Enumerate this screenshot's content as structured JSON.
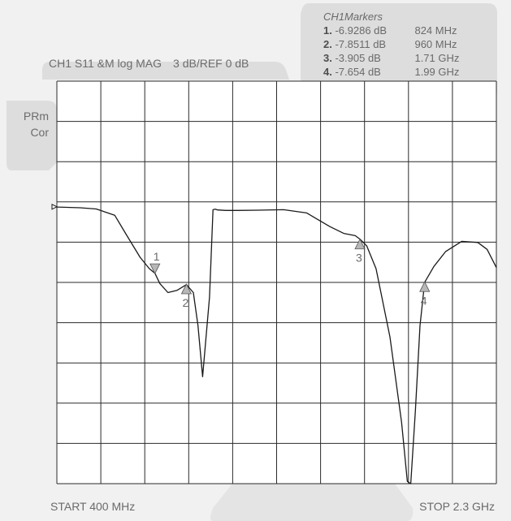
{
  "header": {
    "channel": "CH1 S11 &M log MAG",
    "scale": "3 dB/REF 0 dB"
  },
  "side_panel": {
    "line1": "PRm",
    "line2": "Cor"
  },
  "markers_panel": {
    "title": "CH1Markers",
    "markers": [
      {
        "num": "1.",
        "db": "-6.9286 dB",
        "freq": "824 MHz"
      },
      {
        "num": "2.",
        "db": "-7.8511 dB",
        "freq": "960 MHz"
      },
      {
        "num": "3.",
        "db": "-3.905 dB",
        "freq": "1.71 GHz"
      },
      {
        "num": "4.",
        "db": "-7.654 dB",
        "freq": "1.99 GHz"
      }
    ]
  },
  "footer": {
    "start": "START 400 MHz",
    "stop": "STOP 2.3 GHz"
  },
  "colors": {
    "background": "#f1f1f1",
    "panel": "#dddddd",
    "grid": "#2a2a2a",
    "trace": "#1a1a1a",
    "marker_fill": "#b7b7b7",
    "text": "#6a6a6a"
  },
  "chart_data": {
    "type": "line",
    "x_unit": "MHz",
    "y_unit": "dB",
    "xlim": [
      400,
      2300
    ],
    "ylim": [
      -30,
      0
    ],
    "grid": true,
    "reference_level": 0,
    "divisions_x": 10,
    "divisions_y": 10,
    "series": [
      {
        "x": [
          400,
          430,
          500,
          570,
          650,
          700,
          760,
          800,
          824,
          845,
          880,
          920,
          960,
          990,
          1010,
          1030,
          1060,
          1075,
          1085,
          1095,
          1130,
          1180,
          1270,
          1380,
          1480,
          1580,
          1640,
          1690,
          1710,
          1740,
          1780,
          1840,
          1890,
          1915,
          1930,
          1950,
          1970,
          1990,
          2030,
          2080,
          2150,
          2220,
          2260,
          2300
        ],
        "y": [
          -0.1,
          -0.2,
          -0.4,
          -0.9,
          -1.8,
          -3.5,
          -5.5,
          -6.5,
          -6.9,
          -7.8,
          -8.6,
          -8.4,
          -7.9,
          -8.6,
          -11.5,
          -16.0,
          -9.0,
          -1.2,
          -1.0,
          -1.3,
          -1.5,
          -1.5,
          -1.4,
          -1.2,
          -1.6,
          -2.8,
          -3.4,
          -3.6,
          -3.9,
          -4.5,
          -6.5,
          -12.5,
          -20.0,
          -25.2,
          -25.4,
          -19.0,
          -11.5,
          -7.7,
          -6.3,
          -5.0,
          -4.1,
          -4.2,
          -4.8,
          -6.4
        ]
      }
    ],
    "markers": [
      {
        "label": "1",
        "x": 824,
        "y": -6.9286,
        "dir": "down"
      },
      {
        "label": "2",
        "x": 960,
        "y": -7.8511,
        "dir": "up"
      },
      {
        "label": "3",
        "x": 1710,
        "y": -3.905,
        "dir": "up"
      },
      {
        "label": "4",
        "x": 1990,
        "y": -7.654,
        "dir": "up"
      }
    ],
    "reference_marker_y": 0
  }
}
